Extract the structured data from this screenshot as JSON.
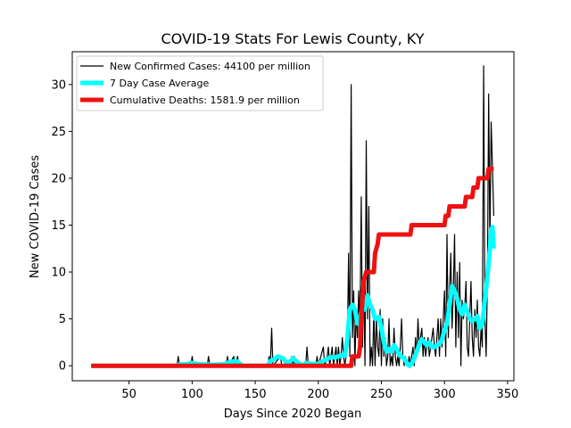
{
  "chart_data": {
    "type": "line",
    "title": "COVID-19 Stats For Lewis County, KY",
    "xlabel": "Days Since 2020 Began",
    "ylabel": "New COVID-19 Cases",
    "xlim": [
      5,
      355
    ],
    "ylim": [
      -1.6,
      33.5
    ],
    "xticks": [
      50,
      100,
      150,
      200,
      250,
      300,
      350
    ],
    "yticks": [
      0,
      5,
      10,
      15,
      20,
      25,
      30
    ],
    "legend_position": "upper-left",
    "grid": false,
    "series": [
      {
        "name": "New Confirmed Cases: 44100 per million",
        "color": "#000000",
        "points": [
          [
            20,
            0
          ],
          [
            88,
            0
          ],
          [
            89,
            1
          ],
          [
            90,
            0
          ],
          [
            99,
            0
          ],
          [
            100,
            1
          ],
          [
            101,
            0
          ],
          [
            112,
            0
          ],
          [
            113,
            1
          ],
          [
            114,
            0
          ],
          [
            127,
            0
          ],
          [
            128,
            1
          ],
          [
            129,
            0
          ],
          [
            133,
            1
          ],
          [
            134,
            0
          ],
          [
            136,
            1
          ],
          [
            137,
            0
          ],
          [
            160,
            0
          ],
          [
            161,
            1
          ],
          [
            162,
            0
          ],
          [
            163,
            4
          ],
          [
            164,
            0
          ],
          [
            170,
            1
          ],
          [
            171,
            0
          ],
          [
            178,
            0
          ],
          [
            179,
            1
          ],
          [
            180,
            0
          ],
          [
            181,
            1
          ],
          [
            182,
            0
          ],
          [
            190,
            0
          ],
          [
            191,
            2
          ],
          [
            192,
            0
          ],
          [
            198,
            0
          ],
          [
            199,
            1
          ],
          [
            200,
            0
          ],
          [
            204,
            2
          ],
          [
            205,
            0
          ],
          [
            207,
            1
          ],
          [
            208,
            2
          ],
          [
            209,
            0
          ],
          [
            210,
            1
          ],
          [
            211,
            2
          ],
          [
            212,
            0
          ],
          [
            213,
            1
          ],
          [
            214,
            2
          ],
          [
            215,
            0
          ],
          [
            216,
            2
          ],
          [
            217,
            0
          ],
          [
            218,
            1
          ],
          [
            219,
            3
          ],
          [
            220,
            1
          ],
          [
            221,
            0
          ],
          [
            222,
            1
          ],
          [
            223,
            2
          ],
          [
            224,
            12
          ],
          [
            225,
            1
          ],
          [
            226,
            30
          ],
          [
            227,
            3
          ],
          [
            228,
            8
          ],
          [
            229,
            0
          ],
          [
            230,
            6
          ],
          [
            231,
            3
          ],
          [
            232,
            8
          ],
          [
            233,
            4
          ],
          [
            234,
            18
          ],
          [
            235,
            2
          ],
          [
            236,
            9
          ],
          [
            237,
            0
          ],
          [
            238,
            24
          ],
          [
            239,
            5
          ],
          [
            240,
            17
          ],
          [
            241,
            0
          ],
          [
            242,
            2
          ],
          [
            243,
            0
          ],
          [
            244,
            6
          ],
          [
            245,
            0
          ],
          [
            246,
            5
          ],
          [
            247,
            2
          ],
          [
            248,
            1
          ],
          [
            249,
            6
          ],
          [
            250,
            0
          ],
          [
            251,
            5
          ],
          [
            252,
            1
          ],
          [
            253,
            3
          ],
          [
            254,
            0
          ],
          [
            255,
            1
          ],
          [
            256,
            5
          ],
          [
            257,
            0
          ],
          [
            258,
            1
          ],
          [
            259,
            0
          ],
          [
            260,
            4
          ],
          [
            261,
            1
          ],
          [
            262,
            0
          ],
          [
            263,
            1
          ],
          [
            264,
            0
          ],
          [
            265,
            2
          ],
          [
            266,
            5
          ],
          [
            267,
            1
          ],
          [
            268,
            0
          ],
          [
            269,
            1
          ],
          [
            270,
            0
          ],
          [
            271,
            0
          ],
          [
            272,
            1
          ],
          [
            273,
            0
          ],
          [
            274,
            1
          ],
          [
            275,
            2
          ],
          [
            276,
            0
          ],
          [
            277,
            3
          ],
          [
            278,
            1
          ],
          [
            279,
            5
          ],
          [
            280,
            2
          ],
          [
            281,
            3
          ],
          [
            282,
            4
          ],
          [
            283,
            1
          ],
          [
            284,
            3
          ],
          [
            285,
            1
          ],
          [
            286,
            2
          ],
          [
            287,
            3
          ],
          [
            288,
            1
          ],
          [
            289,
            2
          ],
          [
            290,
            3
          ],
          [
            291,
            4
          ],
          [
            292,
            2
          ],
          [
            293,
            1
          ],
          [
            294,
            3
          ],
          [
            295,
            5
          ],
          [
            296,
            1
          ],
          [
            297,
            5
          ],
          [
            298,
            2
          ],
          [
            299,
            5
          ],
          [
            300,
            8
          ],
          [
            301,
            1
          ],
          [
            302,
            14
          ],
          [
            303,
            3
          ],
          [
            304,
            8
          ],
          [
            305,
            12
          ],
          [
            306,
            4
          ],
          [
            307,
            8
          ],
          [
            308,
            14
          ],
          [
            309,
            2
          ],
          [
            310,
            10
          ],
          [
            311,
            3
          ],
          [
            312,
            11
          ],
          [
            313,
            0
          ],
          [
            314,
            7
          ],
          [
            315,
            5
          ],
          [
            316,
            6
          ],
          [
            317,
            9
          ],
          [
            318,
            2
          ],
          [
            319,
            1
          ],
          [
            320,
            5
          ],
          [
            321,
            9
          ],
          [
            322,
            3
          ],
          [
            323,
            1
          ],
          [
            324,
            6
          ],
          [
            325,
            3
          ],
          [
            326,
            7
          ],
          [
            327,
            2
          ],
          [
            328,
            1
          ],
          [
            329,
            4
          ],
          [
            330,
            2
          ],
          [
            331,
            32
          ],
          [
            332,
            5
          ],
          [
            333,
            1
          ],
          [
            334,
            9
          ],
          [
            335,
            29
          ],
          [
            336,
            13
          ],
          [
            337,
            26
          ],
          [
            338,
            21
          ],
          [
            339,
            16
          ]
        ]
      },
      {
        "name": "7 Day Case Average",
        "color": "#00ffff",
        "points": [
          [
            20,
            0
          ],
          [
            88,
            0
          ],
          [
            90,
            0.15
          ],
          [
            95,
            0.15
          ],
          [
            100,
            0.3
          ],
          [
            105,
            0.15
          ],
          [
            110,
            0.15
          ],
          [
            115,
            0.1
          ],
          [
            125,
            0.15
          ],
          [
            130,
            0.4
          ],
          [
            135,
            0.5
          ],
          [
            140,
            0
          ],
          [
            160,
            0
          ],
          [
            162,
            0.5
          ],
          [
            165,
            0.7
          ],
          [
            168,
            1.0
          ],
          [
            172,
            0.8
          ],
          [
            175,
            0.3
          ],
          [
            178,
            0.5
          ],
          [
            180,
            0.8
          ],
          [
            184,
            0.3
          ],
          [
            188,
            0
          ],
          [
            190,
            0.3
          ],
          [
            195,
            0.2
          ],
          [
            200,
            0.2
          ],
          [
            205,
            0.6
          ],
          [
            210,
            0.9
          ],
          [
            214,
            0.9
          ],
          [
            218,
            1.1
          ],
          [
            221,
            1.1
          ],
          [
            223,
            2.8
          ],
          [
            225,
            6.0
          ],
          [
            227,
            6.5
          ],
          [
            229,
            6.0
          ],
          [
            231,
            4.5
          ],
          [
            233,
            5.0
          ],
          [
            235,
            6.0
          ],
          [
            237,
            6.0
          ],
          [
            239,
            7.5
          ],
          [
            241,
            6.5
          ],
          [
            243,
            6.0
          ],
          [
            245,
            5.0
          ],
          [
            248,
            5.2
          ],
          [
            250,
            4.0
          ],
          [
            252,
            2.5
          ],
          [
            254,
            1.5
          ],
          [
            256,
            1.8
          ],
          [
            258,
            1.5
          ],
          [
            260,
            2.2
          ],
          [
            262,
            1.8
          ],
          [
            264,
            1.2
          ],
          [
            266,
            1.0
          ],
          [
            268,
            0.8
          ],
          [
            270,
            0.3
          ],
          [
            272,
            0
          ],
          [
            274,
            0.2
          ],
          [
            276,
            0.8
          ],
          [
            278,
            1.5
          ],
          [
            280,
            2.3
          ],
          [
            282,
            2.8
          ],
          [
            284,
            2.5
          ],
          [
            286,
            2.2
          ],
          [
            288,
            2.5
          ],
          [
            290,
            2.0
          ],
          [
            292,
            2.0
          ],
          [
            294,
            2.2
          ],
          [
            296,
            2.3
          ],
          [
            298,
            2.8
          ],
          [
            300,
            3.8
          ],
          [
            302,
            4.5
          ],
          [
            304,
            6.5
          ],
          [
            306,
            8.5
          ],
          [
            308,
            8.0
          ],
          [
            310,
            7.2
          ],
          [
            312,
            6.0
          ],
          [
            314,
            5.5
          ],
          [
            316,
            6.5
          ],
          [
            318,
            5.8
          ],
          [
            320,
            5.0
          ],
          [
            322,
            4.8
          ],
          [
            324,
            5.0
          ],
          [
            326,
            5.3
          ],
          [
            328,
            4.0
          ],
          [
            330,
            4.5
          ],
          [
            332,
            7.0
          ],
          [
            334,
            9.5
          ],
          [
            336,
            12.5
          ],
          [
            337,
            14.5
          ],
          [
            338,
            14.8
          ],
          [
            339,
            12.5
          ]
        ]
      },
      {
        "name": "Cumulative Deaths: 1581.9 per million",
        "color": "#ee1111",
        "points": [
          [
            20,
            0
          ],
          [
            226,
            0
          ],
          [
            227,
            1
          ],
          [
            232,
            1
          ],
          [
            233,
            2
          ],
          [
            234,
            5
          ],
          [
            236,
            9
          ],
          [
            238,
            10
          ],
          [
            244,
            10
          ],
          [
            245,
            12
          ],
          [
            247,
            13
          ],
          [
            248,
            14
          ],
          [
            273,
            14
          ],
          [
            274,
            15
          ],
          [
            300,
            15
          ],
          [
            301,
            16
          ],
          [
            303,
            16
          ],
          [
            304,
            17
          ],
          [
            316,
            17
          ],
          [
            317,
            18
          ],
          [
            322,
            18
          ],
          [
            323,
            19
          ],
          [
            326,
            19
          ],
          [
            327,
            20
          ],
          [
            334,
            20
          ],
          [
            335,
            21
          ],
          [
            339,
            21
          ]
        ]
      }
    ]
  }
}
